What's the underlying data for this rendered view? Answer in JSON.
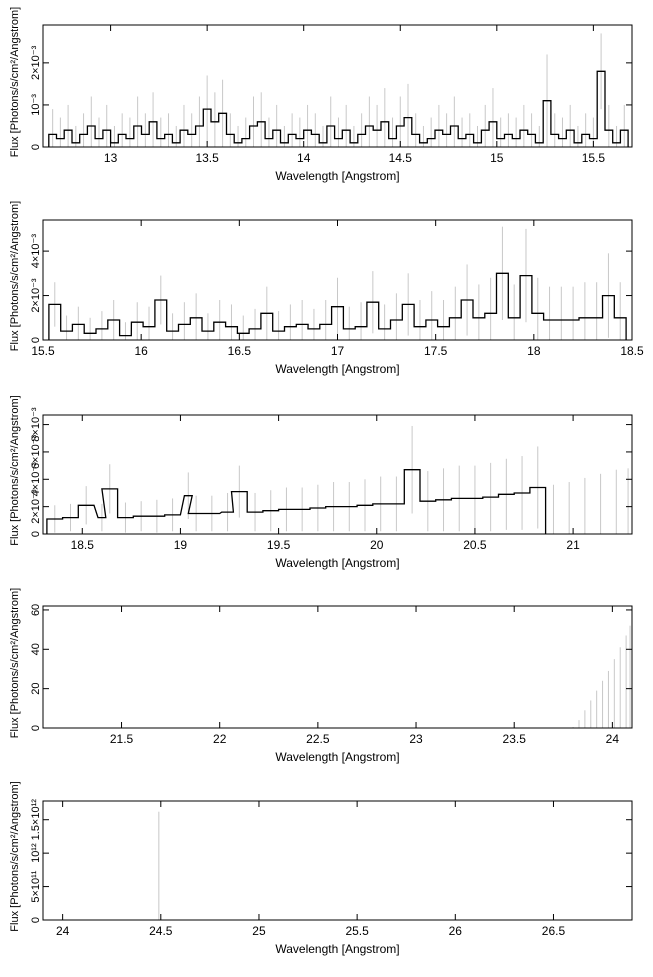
{
  "colors": {
    "axis": "#000000",
    "error_bar": "#c8c8c8",
    "data": "#000000"
  },
  "chart_data": [
    {
      "type": "line",
      "step": true,
      "xlabel": "Wavelength [Angstrom]",
      "ylabel": "Flux [Photons/s/cm²/Angstrom]",
      "xlim": [
        12.65,
        15.7
      ],
      "ylim": [
        0,
        0.0029
      ],
      "xticks": [
        13,
        13.5,
        14,
        14.5,
        15,
        15.5
      ],
      "xtick_labels": [
        "13",
        "13.5",
        "14",
        "14.5",
        "15",
        "15.5"
      ],
      "yticks": [
        0,
        0.001,
        0.002
      ],
      "ytick_labels": [
        "0",
        "10⁻³",
        "2×10⁻³"
      ],
      "x": [
        12.7,
        12.74,
        12.78,
        12.82,
        12.86,
        12.9,
        12.94,
        12.98,
        13.02,
        13.06,
        13.1,
        13.14,
        13.18,
        13.22,
        13.26,
        13.3,
        13.34,
        13.38,
        13.42,
        13.46,
        13.5,
        13.54,
        13.58,
        13.62,
        13.66,
        13.7,
        13.74,
        13.78,
        13.82,
        13.86,
        13.9,
        13.94,
        13.98,
        14.02,
        14.06,
        14.1,
        14.14,
        14.18,
        14.22,
        14.26,
        14.3,
        14.34,
        14.38,
        14.42,
        14.46,
        14.5,
        14.54,
        14.58,
        14.62,
        14.66,
        14.7,
        14.74,
        14.78,
        14.82,
        14.86,
        14.9,
        14.94,
        14.98,
        15.02,
        15.06,
        15.1,
        15.14,
        15.18,
        15.22,
        15.26,
        15.3,
        15.34,
        15.38,
        15.42,
        15.46,
        15.5,
        15.54,
        15.58,
        15.62,
        15.66
      ],
      "y": [
        0.0003,
        0.0002,
        0.0004,
        0.0001,
        0.0003,
        0.0005,
        0.0002,
        0.0004,
        0.0001,
        0.0003,
        0.0002,
        0.0005,
        0.0003,
        0.0006,
        0.0002,
        0.0003,
        0.0001,
        0.0004,
        0.0003,
        0.0005,
        0.0009,
        0.0006,
        0.0008,
        0.0003,
        0.0001,
        0.0002,
        0.0005,
        0.0006,
        0.0002,
        0.0004,
        0.0001,
        0.0003,
        0.0002,
        0.0004,
        0.0003,
        0.0001,
        0.0005,
        0.0002,
        0.0004,
        0.0001,
        0.0003,
        0.0005,
        0.0004,
        0.0006,
        0.0002,
        0.0005,
        0.0007,
        0.0003,
        0.0001,
        0.0002,
        0.0004,
        0.0003,
        0.0005,
        0.0002,
        0.0003,
        0.0001,
        0.0004,
        0.0006,
        0.0002,
        0.0003,
        0.0002,
        0.0004,
        0.0003,
        0.0001,
        0.0011,
        0.0003,
        0.0002,
        0.0004,
        0.0001,
        0.0003,
        0.0002,
        0.0018,
        0.0004,
        0.0001,
        0.0004
      ],
      "err": [
        0.0006,
        0.0005,
        0.0006,
        0.0004,
        0.0005,
        0.0007,
        0.0005,
        0.0006,
        0.0004,
        0.0005,
        0.0005,
        0.0007,
        0.0005,
        0.0007,
        0.0005,
        0.0005,
        0.0004,
        0.0006,
        0.0005,
        0.0007,
        0.0008,
        0.0007,
        0.0008,
        0.0005,
        0.0004,
        0.0005,
        0.0007,
        0.0007,
        0.0005,
        0.0006,
        0.0004,
        0.0005,
        0.0005,
        0.0006,
        0.0005,
        0.0004,
        0.0007,
        0.0005,
        0.0006,
        0.0004,
        0.0005,
        0.0007,
        0.0006,
        0.0008,
        0.0005,
        0.0007,
        0.0008,
        0.0005,
        0.0004,
        0.0005,
        0.0006,
        0.0005,
        0.0007,
        0.0005,
        0.0005,
        0.0004,
        0.0006,
        0.0008,
        0.0005,
        0.0005,
        0.0005,
        0.0006,
        0.0005,
        0.0004,
        0.0011,
        0.0005,
        0.0005,
        0.0006,
        0.0004,
        0.0005,
        0.0005,
        0.0009,
        0.0006,
        0.0004,
        0.0006
      ]
    },
    {
      "type": "line",
      "step": true,
      "xlabel": "Wavelength [Angstrom]",
      "ylabel": "Flux [Photons/s/cm²/Angstrom]",
      "xlim": [
        15.5,
        18.5
      ],
      "ylim": [
        0,
        0.0054
      ],
      "xticks": [
        15.5,
        16,
        16.5,
        17,
        17.5,
        18,
        18.5
      ],
      "xtick_labels": [
        "15.5",
        "16",
        "16.5",
        "17",
        "17.5",
        "18",
        "18.5"
      ],
      "yticks": [
        0,
        0.002,
        0.004
      ],
      "ytick_labels": [
        "0",
        "2×10⁻³",
        "4×10⁻³"
      ],
      "x": [
        15.56,
        15.62,
        15.68,
        15.74,
        15.8,
        15.86,
        15.92,
        15.98,
        16.04,
        16.1,
        16.16,
        16.22,
        16.28,
        16.34,
        16.4,
        16.46,
        16.52,
        16.58,
        16.64,
        16.7,
        16.76,
        16.82,
        16.88,
        16.94,
        17.0,
        17.06,
        17.12,
        17.18,
        17.24,
        17.3,
        17.36,
        17.42,
        17.48,
        17.54,
        17.6,
        17.66,
        17.72,
        17.78,
        17.84,
        17.9,
        17.96,
        18.02,
        18.08,
        18.14,
        18.2,
        18.26,
        18.32,
        18.38,
        18.44
      ],
      "y": [
        0.0016,
        0.0004,
        0.0007,
        0.0003,
        0.0005,
        0.0009,
        0.0002,
        0.0008,
        0.0006,
        0.0018,
        0.0004,
        0.0007,
        0.001,
        0.0004,
        0.0008,
        0.0006,
        0.0003,
        0.0005,
        0.0012,
        0.0004,
        0.0006,
        0.0007,
        0.0005,
        0.0007,
        0.0015,
        0.0005,
        0.0006,
        0.0017,
        0.0005,
        0.0009,
        0.0016,
        0.0006,
        0.0009,
        0.0006,
        0.001,
        0.0018,
        0.001,
        0.0012,
        0.003,
        0.001,
        0.0029,
        0.0012,
        0.0009,
        0.0009,
        0.0009,
        0.001,
        0.001,
        0.002,
        0.001
      ],
      "err": [
        0.001,
        0.0007,
        0.0008,
        0.0007,
        0.0008,
        0.0009,
        0.0006,
        0.0009,
        0.0009,
        0.0011,
        0.0008,
        0.001,
        0.0011,
        0.0008,
        0.001,
        0.001,
        0.0008,
        0.0009,
        0.0012,
        0.0009,
        0.001,
        0.0011,
        0.0009,
        0.0011,
        0.0013,
        0.001,
        0.0011,
        0.0014,
        0.0011,
        0.0012,
        0.0014,
        0.0012,
        0.0013,
        0.0012,
        0.0014,
        0.0016,
        0.0015,
        0.0016,
        0.0021,
        0.0015,
        0.0021,
        0.0016,
        0.0015,
        0.0015,
        0.0015,
        0.0016,
        0.0016,
        0.0019,
        0.0016
      ]
    },
    {
      "type": "line",
      "step": true,
      "xlabel": "Wavelength [Angstrom]",
      "ylabel": "Flux [Photons/s/cm²/Angstrom]",
      "xlim": [
        18.3,
        21.3
      ],
      "ylim": [
        0,
        0.0087
      ],
      "xticks": [
        18.5,
        19,
        19.5,
        20,
        20.5,
        21
      ],
      "xtick_labels": [
        "18.5",
        "19",
        "19.5",
        "20",
        "20.5",
        "21"
      ],
      "yticks": [
        0,
        0.002,
        0.004,
        0.006,
        0.008
      ],
      "ytick_labels": [
        "0",
        "2×10⁻³",
        "4×10⁻³",
        "6×10⁻³",
        "8×10⁻³"
      ],
      "x": [
        18.36,
        18.44,
        18.52,
        18.6,
        18.64,
        18.72,
        18.8,
        18.88,
        18.96,
        19.04,
        19.08,
        19.16,
        19.24,
        19.3,
        19.38,
        19.46,
        19.54,
        19.62,
        19.7,
        19.78,
        19.86,
        19.94,
        20.02,
        20.1,
        20.18,
        20.26,
        20.34,
        20.42,
        20.5,
        20.58,
        20.66,
        20.74,
        20.82
      ],
      "y": [
        0.0011,
        0.0012,
        0.0021,
        0.0012,
        0.0033,
        0.0012,
        0.0013,
        0.0013,
        0.0014,
        0.0028,
        0.0015,
        0.0015,
        0.0016,
        0.0031,
        0.0016,
        0.0017,
        0.0018,
        0.0018,
        0.0019,
        0.002,
        0.002,
        0.0021,
        0.0022,
        0.0022,
        0.0047,
        0.0024,
        0.0025,
        0.0026,
        0.0026,
        0.0027,
        0.0029,
        0.003,
        0.0034
      ],
      "err": [
        0.001,
        0.001,
        0.0014,
        0.001,
        0.0018,
        0.0011,
        0.0011,
        0.0012,
        0.0012,
        0.0017,
        0.0013,
        0.0013,
        0.0014,
        0.0019,
        0.0014,
        0.0015,
        0.0016,
        0.0016,
        0.0017,
        0.0018,
        0.0018,
        0.0019,
        0.002,
        0.002,
        0.0032,
        0.0022,
        0.0023,
        0.0024,
        0.0024,
        0.0025,
        0.0026,
        0.0027,
        0.003
      ],
      "err_only_x": [
        20.9,
        20.98,
        21.06,
        21.14,
        21.22,
        21.28
      ],
      "err_only_top": [
        0.0036,
        0.0038,
        0.0041,
        0.0044,
        0.0047,
        0.0048
      ]
    },
    {
      "type": "line",
      "step": true,
      "xlabel": "Wavelength [Angstrom]",
      "ylabel": "Flux [Photons/s/cm²/Angstrom]",
      "xlim": [
        21.1,
        24.1
      ],
      "ylim": [
        0,
        62
      ],
      "xticks": [
        21.5,
        22,
        22.5,
        23,
        23.5,
        24
      ],
      "xtick_labels": [
        "21.5",
        "22",
        "22.5",
        "23",
        "23.5",
        "24"
      ],
      "yticks": [
        0,
        20,
        40,
        60
      ],
      "ytick_labels": [
        "0",
        "20",
        "40",
        "60"
      ],
      "err_only_x": [
        23.8,
        23.83,
        23.86,
        23.89,
        23.92,
        23.95,
        23.98,
        24.01,
        24.04,
        24.07,
        24.09
      ],
      "err_only_top": [
        0.5,
        4,
        9,
        14,
        19,
        24,
        29,
        35,
        41,
        47,
        52
      ]
    },
    {
      "type": "line",
      "step": true,
      "xlabel": "Wavelength [Angstrom]",
      "ylabel": "Flux [Photons/s/cm²/Angstrom]",
      "xlim": [
        23.9,
        26.9
      ],
      "ylim": [
        0,
        1780000000000.0
      ],
      "xticks": [
        24,
        24.5,
        25,
        25.5,
        26,
        26.5
      ],
      "xtick_labels": [
        "24",
        "24.5",
        "25",
        "25.5",
        "26",
        "26.5"
      ],
      "yticks": [
        0,
        500000000000.0,
        1000000000000.0,
        1500000000000.0
      ],
      "ytick_labels": [
        "0",
        "5×10¹¹",
        "10¹²",
        "1.5×10¹²"
      ],
      "err_only_x": [
        24.49
      ],
      "err_only_top": [
        1620000000000.0
      ]
    }
  ]
}
